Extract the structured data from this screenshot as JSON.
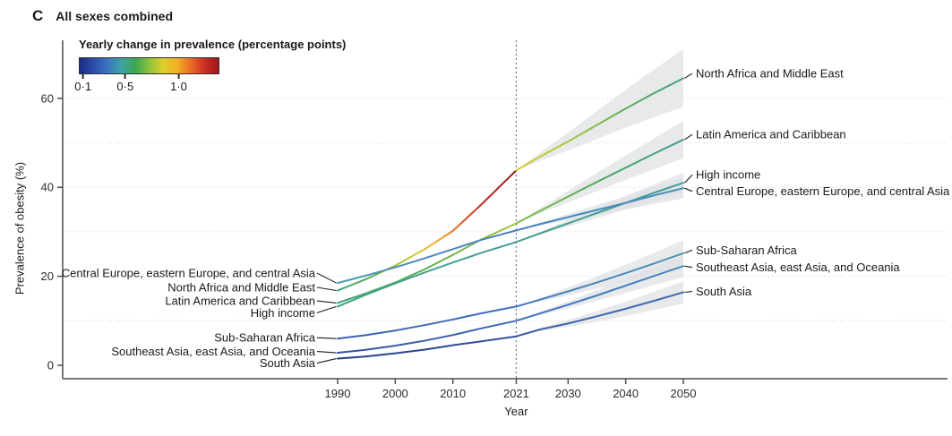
{
  "panel": {
    "letter": "C",
    "title": "All sexes combined"
  },
  "legend": {
    "title": "Yearly change in prevalence (percentage points)",
    "gradient_colors": [
      "#1b2c80",
      "#2c4daa",
      "#3b74c2",
      "#3da3a2",
      "#3aa753",
      "#8ec33c",
      "#ddd02b",
      "#f3b124",
      "#ea6c26",
      "#cc2d22",
      "#9c161c"
    ],
    "ticks": [
      {
        "label": "0·1",
        "pct": 3
      },
      {
        "label": "0·5",
        "pct": 33
      },
      {
        "label": "1·0",
        "pct": 71
      }
    ]
  },
  "axes": {
    "x_label": "Year",
    "y_label": "Prevalence of obesity (%)",
    "x_tick_labels": [
      "1990",
      "2000",
      "2010",
      "2021",
      "2030",
      "2040",
      "2050"
    ],
    "y_tick_labels": [
      "0",
      "20",
      "40",
      "60"
    ],
    "dashed_year_label": "2021"
  },
  "chart_data": {
    "type": "line",
    "title": "All sexes combined",
    "xlabel": "Year",
    "ylabel": "Prevalence of obesity (%)",
    "x": [
      1990,
      1995,
      2000,
      2005,
      2010,
      2015,
      2021,
      2025,
      2030,
      2035,
      2040,
      2045,
      2050
    ],
    "x_ticks": [
      1990,
      2000,
      2010,
      2021,
      2030,
      2040,
      2050
    ],
    "ylim": [
      0,
      70
    ],
    "grid_values": [
      10,
      20,
      30,
      40,
      50,
      60
    ],
    "forecast_start": 2021,
    "legend_meaning": "line color encodes yearly change in prevalence (percentage points)",
    "series": [
      {
        "name": "North Africa and Middle East",
        "y": [
          16.8,
          19.4,
          22.4,
          26.0,
          30.2,
          36.2,
          43.8,
          46.8,
          50.3,
          54.0,
          57.7,
          61.2,
          64.5
        ],
        "ci_half_2050": 6.5,
        "color_pre": [
          [
            0,
            "#3da487"
          ],
          [
            0.18,
            "#55ab53"
          ],
          [
            0.32,
            "#96c23c"
          ],
          [
            0.45,
            "#d9cb2e"
          ],
          [
            0.58,
            "#eea227"
          ],
          [
            0.7,
            "#dc5b28"
          ],
          [
            0.82,
            "#bd2d25"
          ],
          [
            1,
            "#8a1a1e"
          ]
        ],
        "color_post": [
          [
            0,
            "#dfca2e"
          ],
          [
            0.3,
            "#abc63c"
          ],
          [
            0.65,
            "#61b05b"
          ],
          [
            1,
            "#3da189"
          ]
        ]
      },
      {
        "name": "Latin America and Caribbean",
        "y": [
          14.0,
          16.2,
          18.6,
          21.5,
          24.8,
          28.3,
          31.9,
          34.6,
          37.9,
          41.2,
          44.4,
          47.6,
          50.7
        ],
        "ci_half_2050": 4.2,
        "color_pre": [
          [
            0,
            "#3ea37d"
          ],
          [
            0.45,
            "#58ac4f"
          ],
          [
            0.8,
            "#8cbf3e"
          ],
          [
            1,
            "#a9c73a"
          ]
        ],
        "color_post": [
          [
            0,
            "#84bc45"
          ],
          [
            0.5,
            "#55ab64"
          ],
          [
            1,
            "#3d9d8b"
          ]
        ]
      },
      {
        "name": "High income",
        "y": [
          13.2,
          15.9,
          18.4,
          20.8,
          23.1,
          25.3,
          27.7,
          29.6,
          31.9,
          34.2,
          36.5,
          38.8,
          41.0
        ],
        "ci_half_2050": 2.3,
        "color_pre": [
          [
            0,
            "#42a37f"
          ],
          [
            0.6,
            "#41a293"
          ],
          [
            1,
            "#44999f"
          ]
        ],
        "color_post": [
          [
            0,
            "#43a18d"
          ],
          [
            1,
            "#419e92"
          ]
        ]
      },
      {
        "name": "Central Europe, eastern Europe, and central Asia",
        "y": [
          18.5,
          20.2,
          22.0,
          24.0,
          26.1,
          28.2,
          30.3,
          31.7,
          33.3,
          34.9,
          36.5,
          38.2,
          39.8
        ],
        "ci_half_2050": 2.3,
        "color_pre": [
          [
            0,
            "#4d9cb0"
          ],
          [
            0.5,
            "#4b89c0"
          ],
          [
            1,
            "#4a7fc2"
          ]
        ],
        "color_post": [
          [
            0,
            "#4a82c2"
          ],
          [
            1,
            "#4c91b7"
          ]
        ]
      },
      {
        "name": "Sub-Saharan Africa",
        "y": [
          6.0,
          6.8,
          7.8,
          9.0,
          10.3,
          11.7,
          13.2,
          14.7,
          16.6,
          18.6,
          20.7,
          22.9,
          25.2
        ],
        "ci_half_2050": 2.9,
        "color_pre": [
          [
            0,
            "#3a5eb2"
          ],
          [
            1,
            "#4171c0"
          ]
        ],
        "color_post": [
          [
            0,
            "#4476c1"
          ],
          [
            1,
            "#4d95b4"
          ]
        ]
      },
      {
        "name": "Southeast Asia, east Asia, and Oceania",
        "y": [
          2.8,
          3.5,
          4.4,
          5.5,
          6.8,
          8.3,
          10.0,
          11.6,
          13.6,
          15.7,
          17.9,
          20.1,
          22.3
        ],
        "ci_half_2050": 2.5,
        "color_pre": [
          [
            0,
            "#33539f"
          ],
          [
            1,
            "#3c67b8"
          ]
        ],
        "color_post": [
          [
            0,
            "#4070c0"
          ],
          [
            1,
            "#4a87c0"
          ]
        ]
      },
      {
        "name": "South Asia",
        "y": [
          1.5,
          2.0,
          2.7,
          3.5,
          4.5,
          5.4,
          6.5,
          8.0,
          9.4,
          11.0,
          12.7,
          14.5,
          16.4
        ],
        "ci_half_2050": 2.5,
        "color_pre": [
          [
            0,
            "#263c86"
          ],
          [
            1,
            "#33539e"
          ]
        ],
        "color_post": [
          [
            0,
            "#365aa2"
          ],
          [
            1,
            "#406eb8"
          ]
        ]
      }
    ]
  }
}
